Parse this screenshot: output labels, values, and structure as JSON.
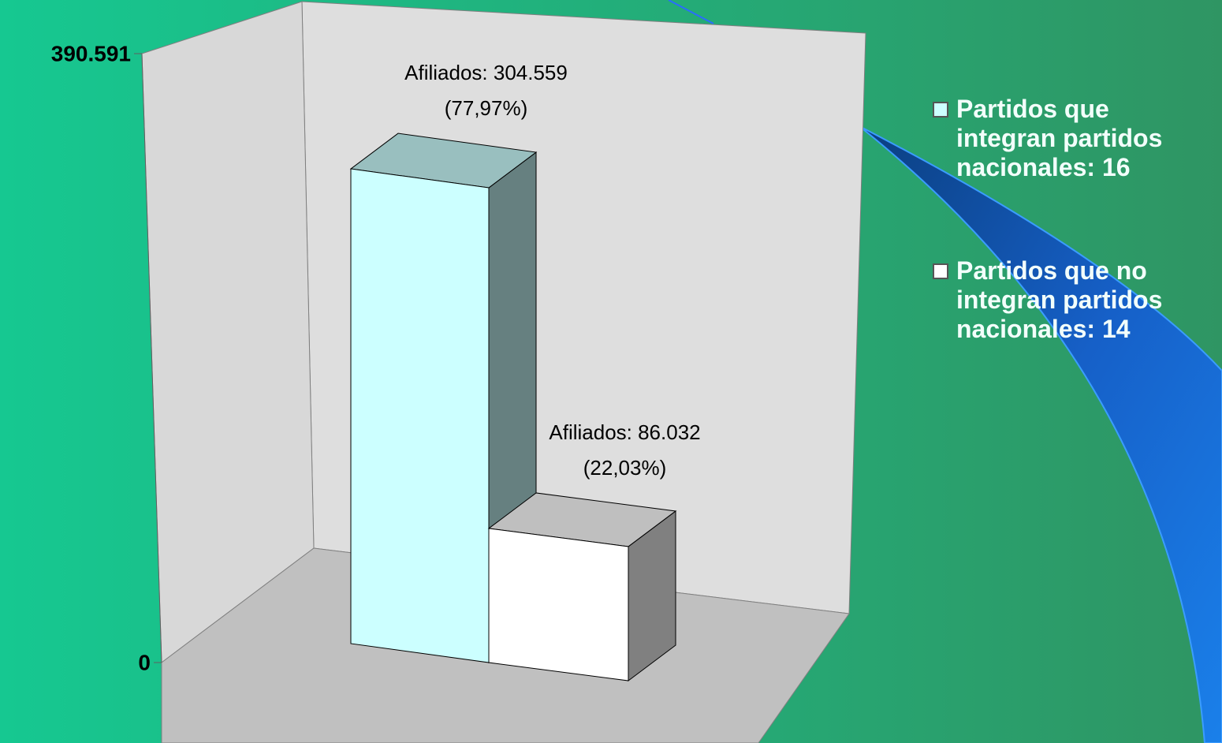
{
  "chart_data": {
    "type": "bar",
    "ylim": [
      0,
      390591
    ],
    "yticks": [
      0,
      {
        "value": 390591,
        "label": "390.591"
      }
    ],
    "legend": "right",
    "series": [
      {
        "name": "Partidos que integran partidos nacionales: 16",
        "color": "#ccffff",
        "values": [
          304559
        ],
        "value_labels": [
          "Afiliados: 304.559"
        ],
        "shares": [
          77.97
        ],
        "share_labels": [
          "(77,97%)"
        ]
      },
      {
        "name": "Partidos que no integran partidos nacionales: 14",
        "color": "#ffffff",
        "values": [
          86032
        ],
        "value_labels": [
          "Afiliados: 86.032"
        ],
        "shares": [
          22.03
        ],
        "share_labels": [
          "(22,03%)"
        ]
      }
    ]
  }
}
